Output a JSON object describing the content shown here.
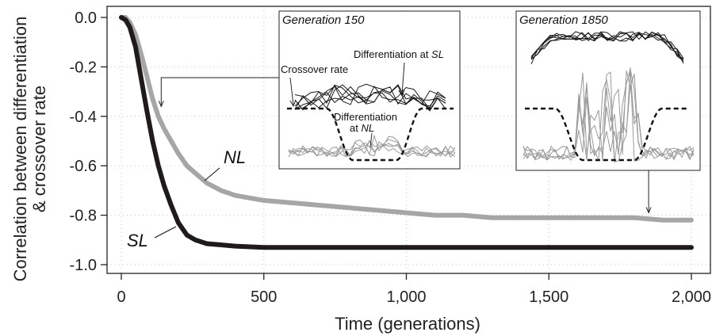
{
  "chart_data": {
    "type": "line",
    "xlabel": "Time (generations)",
    "ylabel_line1": "Correlation between differentiation",
    "ylabel_line2": "& crossover rate",
    "xlim": [
      0,
      2000
    ],
    "ylim": [
      -1.0,
      0.0
    ],
    "xticks": [
      0,
      500,
      1000,
      1500,
      2000
    ],
    "xtick_labels": [
      "0",
      "500",
      "1,000",
      "1,500",
      "2,000"
    ],
    "yticks": [
      0.0,
      -0.2,
      -0.4,
      -0.6,
      -0.8,
      -1.0
    ],
    "ytick_labels": [
      "0.0",
      "-0.2",
      "-0.4",
      "-0.6",
      "-0.8",
      "-1.0"
    ],
    "grid": true,
    "series": [
      {
        "name": "NL",
        "color": "#a6a6a6",
        "x": [
          0,
          15,
          30,
          50,
          70,
          90,
          110,
          130,
          150,
          175,
          200,
          230,
          260,
          300,
          350,
          400,
          450,
          500,
          600,
          700,
          800,
          900,
          1000,
          1100,
          1200,
          1300,
          1400,
          1500,
          1600,
          1700,
          1800,
          1900,
          2000
        ],
        "y": [
          0.0,
          0.0,
          -0.02,
          -0.07,
          -0.15,
          -0.24,
          -0.33,
          -0.4,
          -0.45,
          -0.5,
          -0.55,
          -0.6,
          -0.63,
          -0.67,
          -0.7,
          -0.72,
          -0.73,
          -0.74,
          -0.75,
          -0.76,
          -0.77,
          -0.78,
          -0.79,
          -0.8,
          -0.8,
          -0.81,
          -0.81,
          -0.81,
          -0.81,
          -0.81,
          -0.81,
          -0.82,
          -0.82
        ]
      },
      {
        "name": "SL",
        "color": "#1f1b1b",
        "x": [
          0,
          15,
          30,
          50,
          70,
          90,
          110,
          130,
          150,
          175,
          200,
          230,
          260,
          300,
          350,
          400,
          500,
          600,
          800,
          1000,
          1200,
          1400,
          1600,
          1800,
          2000
        ],
        "y": [
          0.0,
          -0.01,
          -0.04,
          -0.12,
          -0.25,
          -0.38,
          -0.5,
          -0.6,
          -0.68,
          -0.76,
          -0.83,
          -0.88,
          -0.9,
          -0.915,
          -0.92,
          -0.925,
          -0.93,
          -0.93,
          -0.93,
          -0.93,
          -0.93,
          -0.93,
          -0.93,
          -0.93,
          -0.93
        ]
      }
    ],
    "insets": [
      {
        "title": "Generation 150",
        "labels": {
          "crossover": "Crossover rate",
          "diff_sl": "Differentiation at ",
          "diff_sl_italic": "SL",
          "diff_nl_line1": "Differentiation",
          "diff_nl_line2": "at ",
          "diff_nl_italic": "NL"
        },
        "points_to_x": 140,
        "points_to_y": -0.36
      },
      {
        "title": "Generation 1850",
        "points_to_x": 1850,
        "points_to_y": -0.79
      }
    ]
  }
}
